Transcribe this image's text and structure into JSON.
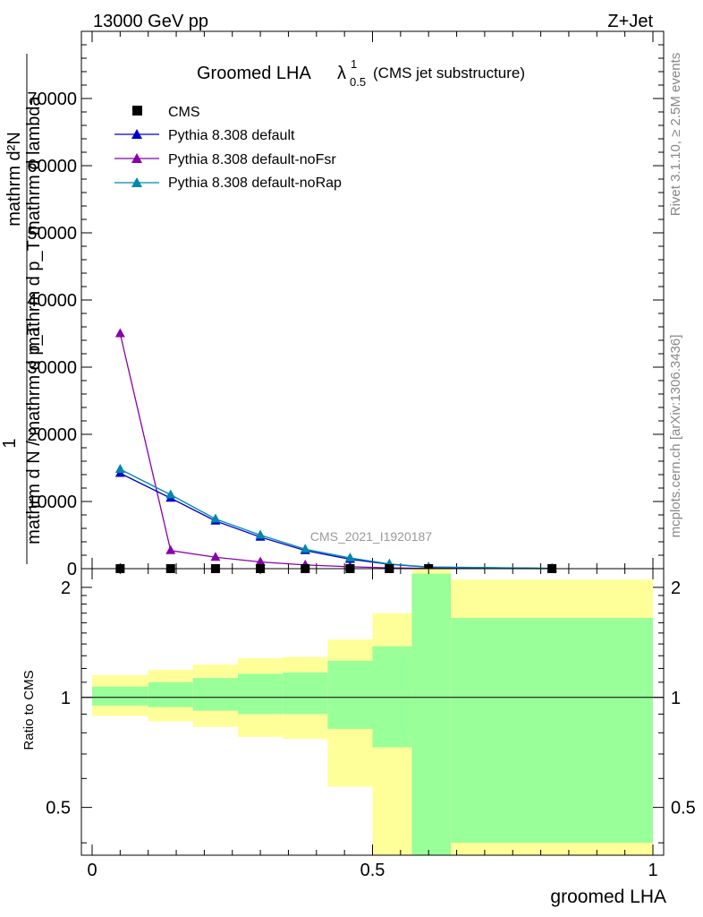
{
  "header": {
    "energy_label": "13000 GeV pp",
    "process_label": "Z+Jet"
  },
  "side_labels": {
    "rivet": "Rivet 3.1.10, ≥ 2.5M events",
    "mcplots": "mcplots.cern.ch [arXiv:1306.3436]"
  },
  "title": {
    "main": "Groomed LHA",
    "lambda": "λ",
    "superscript": "1",
    "subscript": "0.5",
    "suffix": "(CMS jet substructure)"
  },
  "watermark": "CMS_2021_I1920187",
  "ylabel_main": {
    "numerator": "mathrm d²N",
    "denominator": "mathrm d p_T mathrm d lambda",
    "prefix_one": "1",
    "prefix_denom": "mathrm d N / mathrm d p_T",
    "note": "as printed (overlapping)"
  },
  "ylabel_ratio": "Ratio to CMS",
  "xlabel": "groomed LHA",
  "colors": {
    "cms": "#000000",
    "default": "#0000cc",
    "noFsr": "#8800aa",
    "noRap": "#0088aa",
    "band_inner": "#99ff99",
    "band_outer": "#ffff99"
  },
  "chart_data": [
    {
      "type": "line",
      "title": "Groomed LHA λ^1_0.5 (CMS jet substructure)",
      "xlabel": "",
      "ylabel": "1 / (mathrm d N / mathrm d p_T) mathrm d²N / (mathrm d p_T mathrm d lambda)",
      "xlim": [
        0,
        1
      ],
      "ylim": [
        0,
        80000
      ],
      "yticks": [
        0,
        10000,
        20000,
        30000,
        40000,
        50000,
        60000,
        70000
      ],
      "ytick_labels": [
        "0",
        "10000",
        "20000",
        "30000",
        "40000",
        "50000",
        "60000",
        "70000"
      ],
      "legend_position": "top-left",
      "series": [
        {
          "name": "CMS",
          "marker": "square",
          "x": [
            0.05,
            0.14,
            0.22,
            0.3,
            0.38,
            0.46,
            0.53,
            0.6,
            0.82
          ],
          "y": [
            0,
            0,
            0,
            0,
            0,
            0,
            0,
            0,
            0
          ]
        },
        {
          "name": "Pythia 8.308 default",
          "marker": "triangle",
          "x": [
            0.05,
            0.14,
            0.22,
            0.3,
            0.38,
            0.46,
            0.53,
            0.6,
            0.82
          ],
          "y": [
            14200,
            10500,
            7100,
            4700,
            2700,
            1400,
            650,
            220,
            40
          ]
        },
        {
          "name": "Pythia 8.308 default-noFsr",
          "marker": "triangle",
          "x": [
            0.05,
            0.14,
            0.22,
            0.3,
            0.38,
            0.46,
            0.53,
            0.6,
            0.82
          ],
          "y": [
            35000,
            2700,
            1700,
            1000,
            550,
            280,
            120,
            40,
            5
          ]
        },
        {
          "name": "Pythia 8.308 default-noRap",
          "marker": "triangle",
          "x": [
            0.05,
            0.14,
            0.22,
            0.3,
            0.38,
            0.46,
            0.53,
            0.6,
            0.82
          ],
          "y": [
            14800,
            11000,
            7400,
            5000,
            2900,
            1600,
            700,
            250,
            45
          ]
        }
      ]
    },
    {
      "type": "area",
      "title": "",
      "ylabel": "Ratio to CMS",
      "xlabel": "groomed LHA",
      "xlim": [
        0,
        1
      ],
      "ylim": [
        0.37,
        2.25
      ],
      "yticks": [
        0.5,
        1,
        2
      ],
      "ytick_labels": [
        "0.5",
        "1",
        "2"
      ],
      "xticks": [
        0,
        0.5,
        1
      ],
      "xtick_labels": [
        "0",
        "0.5",
        "1"
      ],
      "reference_line": 1,
      "bins": [
        {
          "x_low": 0.0,
          "x_high": 0.1,
          "inner": [
            0.95,
            1.07
          ],
          "outer": [
            0.89,
            1.15
          ]
        },
        {
          "x_low": 0.1,
          "x_high": 0.18,
          "inner": [
            0.94,
            1.1
          ],
          "outer": [
            0.86,
            1.19
          ]
        },
        {
          "x_low": 0.18,
          "x_high": 0.26,
          "inner": [
            0.92,
            1.13
          ],
          "outer": [
            0.83,
            1.23
          ]
        },
        {
          "x_low": 0.26,
          "x_high": 0.34,
          "inner": [
            0.9,
            1.16
          ],
          "outer": [
            0.78,
            1.28
          ]
        },
        {
          "x_low": 0.34,
          "x_high": 0.42,
          "inner": [
            0.9,
            1.17
          ],
          "outer": [
            0.77,
            1.29
          ]
        },
        {
          "x_low": 0.42,
          "x_high": 0.5,
          "inner": [
            0.82,
            1.26
          ],
          "outer": [
            0.57,
            1.44
          ]
        },
        {
          "x_low": 0.5,
          "x_high": 0.57,
          "inner": [
            0.73,
            1.38
          ],
          "outer": [
            0.37,
            1.7
          ]
        },
        {
          "x_low": 0.57,
          "x_high": 0.64,
          "inner": [
            0.37,
            2.18
          ],
          "outer": [
            0.37,
            2.25
          ]
        },
        {
          "x_low": 0.64,
          "x_high": 1.0,
          "inner": [
            0.4,
            1.65
          ],
          "outer": [
            0.37,
            2.1
          ]
        }
      ]
    }
  ]
}
